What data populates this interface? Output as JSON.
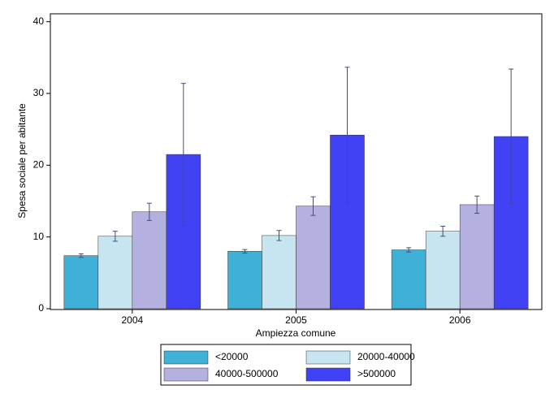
{
  "chart_data": {
    "type": "bar",
    "x_label": "Ampiezza comune",
    "y_label": "Spesa sociale per abitante",
    "categories": [
      "2004",
      "2005",
      "2006"
    ],
    "series": [
      {
        "name": "<20000",
        "color": "#3fb0d6",
        "values": [
          7.4,
          8.0,
          8.2
        ],
        "errors": [
          0.25,
          0.25,
          0.3
        ]
      },
      {
        "name": "20000-40000",
        "color": "#c7e5f0",
        "values": [
          10.1,
          10.2,
          10.8
        ],
        "errors": [
          0.7,
          0.7,
          0.7
        ]
      },
      {
        "name": "40000-500000",
        "color": "#b4b0e0",
        "values": [
          13.5,
          14.3,
          14.5
        ],
        "errors": [
          1.2,
          1.3,
          1.2
        ]
      },
      {
        "name": ">500000",
        "color": "#4141f5",
        "values": [
          21.5,
          24.2,
          24.0
        ],
        "errors": [
          9.9,
          9.45,
          9.4
        ]
      }
    ],
    "ylim": [
      0,
      41.1
    ],
    "yticks": [
      0,
      10,
      20,
      30,
      40
    ]
  }
}
